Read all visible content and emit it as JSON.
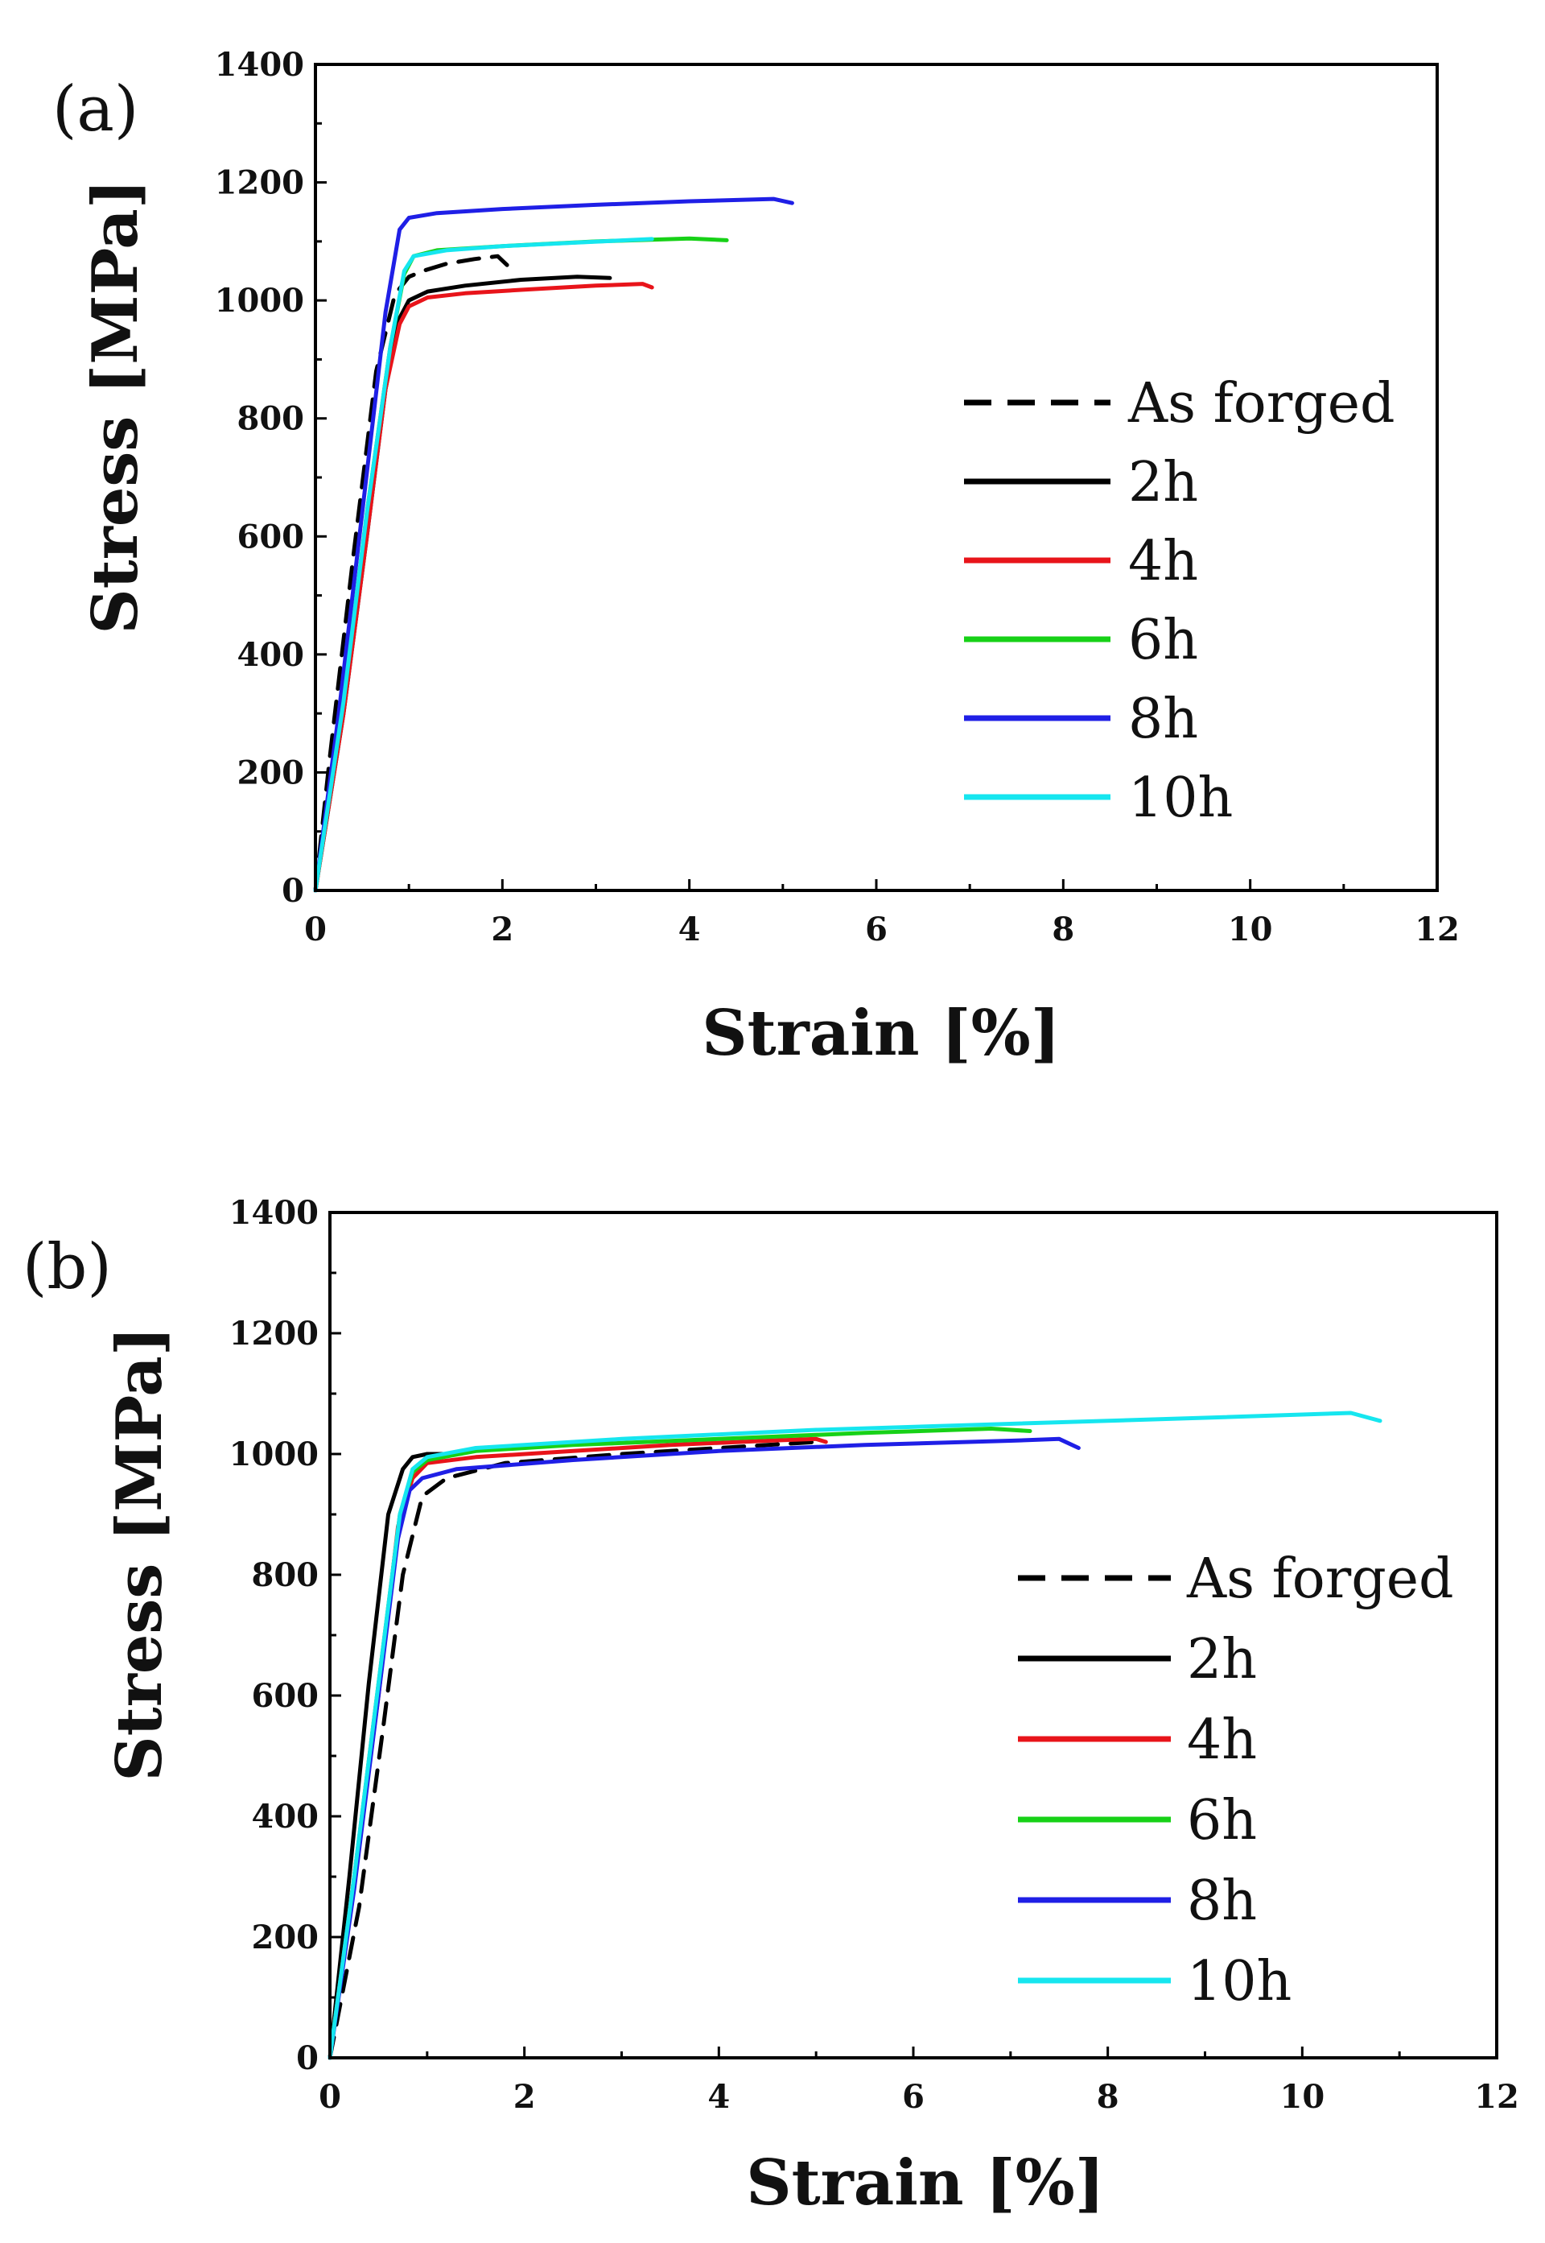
{
  "chart_data": [
    {
      "type": "line",
      "panel_label": "(a)",
      "xlabel": "Strain [%]",
      "ylabel": "Stress [MPa]",
      "xlim": [
        0,
        12
      ],
      "ylim": [
        0,
        1400
      ],
      "xticks": [
        "0",
        "2",
        "4",
        "6",
        "8",
        "10",
        "12"
      ],
      "yticks": [
        "0",
        "200",
        "400",
        "600",
        "800",
        "1000",
        "1200",
        "1400"
      ],
      "legend_position": "right",
      "series": [
        {
          "name": "As forged",
          "color": "#000000",
          "dashed": true,
          "x": [
            0,
            0.15,
            0.4,
            0.65,
            0.85,
            1.0,
            1.15,
            1.4,
            1.7,
            1.95,
            2.05
          ],
          "y": [
            0,
            220,
            560,
            880,
            1010,
            1040,
            1050,
            1062,
            1070,
            1075,
            1060
          ]
        },
        {
          "name": "2h",
          "color": "#000000",
          "dashed": false,
          "x": [
            0,
            0.3,
            0.55,
            0.75,
            0.9,
            1.0,
            1.2,
            1.6,
            2.2,
            2.8,
            3.15
          ],
          "y": [
            0,
            300,
            600,
            850,
            970,
            1000,
            1015,
            1025,
            1035,
            1040,
            1038
          ]
        },
        {
          "name": "4h",
          "color": "#e8141a",
          "dashed": false,
          "x": [
            0,
            0.3,
            0.55,
            0.75,
            0.9,
            1.0,
            1.2,
            1.6,
            2.2,
            3.0,
            3.5,
            3.6
          ],
          "y": [
            0,
            300,
            600,
            850,
            960,
            990,
            1005,
            1012,
            1018,
            1025,
            1028,
            1022
          ]
        },
        {
          "name": "6h",
          "color": "#17d117",
          "dashed": false,
          "x": [
            0,
            0.3,
            0.55,
            0.8,
            0.95,
            1.05,
            1.3,
            2.0,
            3.0,
            4.0,
            4.4
          ],
          "y": [
            0,
            320,
            640,
            920,
            1045,
            1075,
            1085,
            1092,
            1100,
            1105,
            1102
          ]
        },
        {
          "name": "8h",
          "color": "#1f1fe6",
          "dashed": false,
          "x": [
            0,
            0.25,
            0.5,
            0.75,
            0.9,
            1.0,
            1.3,
            2.0,
            3.0,
            4.0,
            4.9,
            5.1
          ],
          "y": [
            0,
            300,
            640,
            980,
            1120,
            1140,
            1148,
            1155,
            1162,
            1168,
            1172,
            1165
          ]
        },
        {
          "name": "10h",
          "color": "#16e6ef",
          "dashed": false,
          "x": [
            0,
            0.3,
            0.55,
            0.8,
            0.95,
            1.05,
            1.4,
            2.0,
            2.8,
            3.6
          ],
          "y": [
            0,
            320,
            640,
            920,
            1050,
            1075,
            1085,
            1092,
            1098,
            1104
          ]
        }
      ]
    },
    {
      "type": "line",
      "panel_label": "(b)",
      "xlabel": "Strain [%]",
      "ylabel": "Stress [MPa]",
      "xlim": [
        0,
        12
      ],
      "ylim": [
        0,
        1400
      ],
      "xticks": [
        "0",
        "2",
        "4",
        "6",
        "8",
        "10",
        "12"
      ],
      "yticks": [
        "0",
        "200",
        "400",
        "600",
        "800",
        "1000",
        "1200",
        "1400"
      ],
      "legend_position": "right",
      "series": [
        {
          "name": "As forged",
          "color": "#000000",
          "dashed": true,
          "x": [
            0,
            0.3,
            0.55,
            0.75,
            0.95,
            1.2,
            1.8,
            3.0,
            4.5,
            5.0
          ],
          "y": [
            0,
            250,
            550,
            800,
            930,
            960,
            985,
            1000,
            1015,
            1020
          ]
        },
        {
          "name": "2h",
          "color": "#000000",
          "dashed": false,
          "x": [
            0,
            0.2,
            0.4,
            0.6,
            0.75,
            0.85,
            1.0,
            1.2
          ],
          "y": [
            0,
            300,
            620,
            900,
            975,
            995,
            1000,
            1000
          ]
        },
        {
          "name": "4h",
          "color": "#e8141a",
          "dashed": false,
          "x": [
            0,
            0.25,
            0.5,
            0.7,
            0.85,
            1.0,
            1.5,
            2.5,
            3.5,
            4.5,
            5.0,
            5.1
          ],
          "y": [
            0,
            300,
            600,
            880,
            960,
            985,
            995,
            1005,
            1015,
            1022,
            1025,
            1020
          ]
        },
        {
          "name": "6h",
          "color": "#17d117",
          "dashed": false,
          "x": [
            0,
            0.25,
            0.5,
            0.72,
            0.85,
            1.0,
            1.5,
            2.5,
            4.0,
            5.5,
            6.8,
            7.2
          ],
          "y": [
            0,
            300,
            620,
            900,
            970,
            990,
            1005,
            1015,
            1025,
            1035,
            1042,
            1038
          ]
        },
        {
          "name": "8h",
          "color": "#1f1fe6",
          "dashed": false,
          "x": [
            0,
            0.25,
            0.5,
            0.7,
            0.82,
            0.95,
            1.3,
            2.5,
            4.0,
            5.5,
            7.0,
            7.5,
            7.7
          ],
          "y": [
            0,
            280,
            600,
            860,
            940,
            960,
            975,
            990,
            1005,
            1015,
            1022,
            1025,
            1010
          ]
        },
        {
          "name": "10h",
          "color": "#16e6ef",
          "dashed": false,
          "x": [
            0,
            0.25,
            0.5,
            0.72,
            0.85,
            1.0,
            1.5,
            3.0,
            5.0,
            7.0,
            9.0,
            10.5,
            10.8
          ],
          "y": [
            0,
            300,
            620,
            900,
            975,
            995,
            1010,
            1025,
            1040,
            1050,
            1060,
            1068,
            1055
          ]
        }
      ]
    }
  ]
}
